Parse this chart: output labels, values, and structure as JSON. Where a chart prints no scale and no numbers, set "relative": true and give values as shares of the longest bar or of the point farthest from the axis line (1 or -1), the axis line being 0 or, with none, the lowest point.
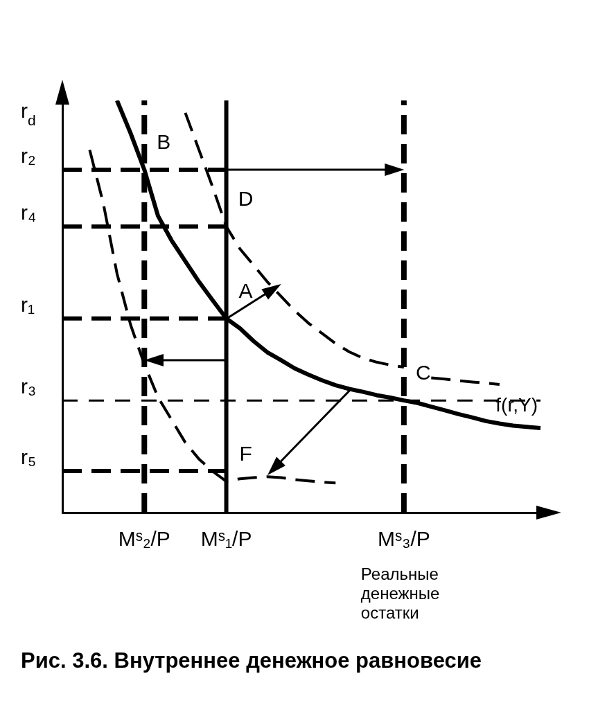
{
  "chart_data": {
    "type": "line",
    "title": "Рис. 3.6. Внутреннее денежное равновесие",
    "xlabel": "Реальные денежные остатки",
    "ylabel": "r$_{d}$",
    "relative": true,
    "categories": [
      null,
      null,
      null,
      null,
      null,
      null,
      "Mˢ₂/P",
      null,
      null,
      null,
      null,
      null,
      "Mˢ₁/P",
      null,
      null,
      null,
      null,
      null,
      null,
      null,
      null,
      null,
      null,
      null,
      null,
      "Mˢ₃/P",
      null,
      null,
      null,
      null,
      null,
      null,
      null,
      null,
      null,
      null
    ],
    "legend": false,
    "marker": "none",
    "series": [
      {
        "name": "f(r,Y)",
        "color": "#000000",
        "line_style": "solid",
        "values": [
          null,
          null,
          null,
          null,
          1,
          0.92,
          0.832,
          0.72,
          0.66,
          0.61,
          0.56,
          0.515,
          0.471,
          0.447,
          0.416,
          0.389,
          0.37,
          0.35,
          0.335,
          0.321,
          0.309,
          0.3,
          0.293,
          0.285,
          0.279,
          0.272,
          0.266,
          0.257,
          0.248,
          0.239,
          0.231,
          0.222,
          0.216,
          0.211,
          0.208,
          0.205
        ]
      },
      {
        "color": "#000000",
        "line_style": "dashed",
        "values": [
          null,
          null,
          null,
          null,
          null,
          null,
          null,
          null,
          null,
          0.97,
          0.88,
          0.79,
          0.694,
          0.64,
          0.6,
          0.56,
          0.525,
          0.49,
          0.46,
          0.435,
          0.41,
          0.39,
          0.375,
          0.365,
          0.358,
          0.353,
          null,
          0.327,
          0.324,
          0.32,
          0.317,
          0.314,
          0.311,
          null,
          null,
          null
        ]
      },
      {
        "color": "#000000",
        "line_style": "dashed",
        "values": [
          null,
          null,
          0.88,
          0.75,
          0.58,
          0.455,
          0.36,
          0.28,
          0.225,
          0.17,
          0.13,
          0.1,
          0.076,
          0.082,
          0.085,
          0.087,
          0.085,
          0.08,
          0.077,
          0.074,
          0.072,
          null,
          null,
          null,
          null,
          null,
          null,
          null,
          null,
          null,
          null,
          null,
          null,
          null,
          null,
          null
        ]
      },
      {
        "name": "r₂",
        "color": "#000000",
        "line_style": "dashed",
        "values": [
          0.832,
          0.832,
          0.832,
          0.832,
          0.832,
          0.832,
          0.832,
          0.832,
          0.832,
          0.832,
          0.832,
          0.832,
          0.832,
          null,
          null,
          null,
          null,
          null,
          null,
          null,
          null,
          null,
          null,
          null,
          null,
          null,
          null,
          null,
          null,
          null,
          null,
          null,
          null,
          null,
          null,
          null
        ]
      },
      {
        "name": "r₄",
        "color": "#000000",
        "line_style": "dashed",
        "values": [
          0.694,
          0.694,
          0.694,
          0.694,
          0.694,
          0.694,
          0.694,
          0.694,
          0.694,
          0.694,
          0.694,
          0.694,
          0.694,
          null,
          null,
          null,
          null,
          null,
          null,
          null,
          null,
          null,
          null,
          null,
          null,
          null,
          null,
          null,
          null,
          null,
          null,
          null,
          null,
          null,
          null,
          null
        ]
      },
      {
        "name": "r₁",
        "color": "#000000",
        "line_style": "dashed",
        "values": [
          0.471,
          0.471,
          0.471,
          0.471,
          0.471,
          0.471,
          0.471,
          0.471,
          0.471,
          0.471,
          0.471,
          0.471,
          0.471,
          null,
          null,
          null,
          null,
          null,
          null,
          null,
          null,
          null,
          null,
          null,
          null,
          null,
          null,
          null,
          null,
          null,
          null,
          null,
          null,
          null,
          null,
          null
        ]
      },
      {
        "name": "r₅",
        "color": "#000000",
        "line_style": "dashed",
        "values": [
          0.101,
          0.101,
          0.101,
          0.101,
          0.101,
          0.101,
          0.101,
          0.101,
          0.101,
          0.101,
          0.101,
          0.101,
          0.101,
          null,
          null,
          null,
          null,
          null,
          null,
          null,
          null,
          null,
          null,
          null,
          null,
          null,
          null,
          null,
          null,
          null,
          null,
          null,
          null,
          null,
          null,
          null
        ]
      }
    ],
    "ref_lines": [
      {
        "axis": "x",
        "value": "Mˢ₂/P",
        "line_style": "dashed",
        "color": "#000000"
      },
      {
        "axis": "x",
        "value": "Mˢ₁/P",
        "line_style": "solid",
        "color": "#000000"
      },
      {
        "axis": "x",
        "value": "Mˢ₃/P",
        "line_style": "dashed",
        "color": "#000000"
      },
      {
        "axis": "y",
        "value": 0.272,
        "label": "r₃",
        "line_style": "dashed",
        "color": "#000000"
      }
    ],
    "annotations": [
      {
        "text": "A",
        "x": "Mˢ₁/P",
        "y": 0.471
      },
      {
        "text": "B",
        "x": "Mˢ₂/P",
        "y": 0.832
      },
      {
        "text": "C",
        "x": "Mˢ₃/P",
        "y": 0.272
      },
      {
        "text": "D",
        "x": "Mˢ₁/P",
        "y": 0.694
      },
      {
        "text": "F",
        "x": "Mˢ₁/P",
        "y": 0.076
      }
    ]
  }
}
